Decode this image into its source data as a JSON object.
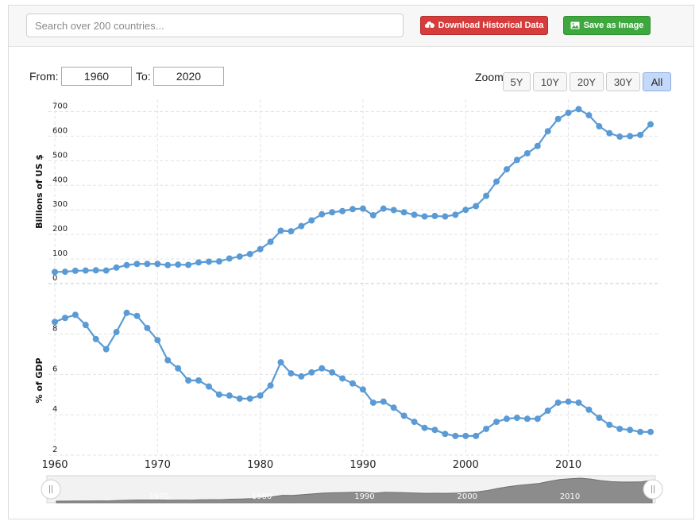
{
  "search": {
    "placeholder": "Search over 200 countries..."
  },
  "toolbar": {
    "download_label": "Download Historical Data",
    "download_icon": "cloud-download-icon",
    "save_image_label": "Save as Image",
    "save_image_icon": "image-icon",
    "download_color": "#d63c3c",
    "save_color": "#3ea83e"
  },
  "range": {
    "from_label": "From:",
    "from_value": "1960",
    "to_label": "To:",
    "to_value": "2020"
  },
  "zoom": {
    "label": "Zoom:",
    "options": [
      "5Y",
      "10Y",
      "20Y",
      "30Y",
      "All"
    ],
    "selected": "All"
  },
  "colors": {
    "series": "#5b9bd5",
    "grid": "#e3e3e3",
    "navigator_fill": "#8c8c8c"
  },
  "chart_data": [
    {
      "type": "line",
      "ylabel": "Billions of US $",
      "ylim": [
        0,
        750
      ],
      "yticks": [
        0,
        100,
        200,
        300,
        400,
        500,
        600,
        700
      ],
      "xlim": [
        1960,
        2018
      ],
      "x": [
        1960,
        1961,
        1962,
        1963,
        1964,
        1965,
        1966,
        1967,
        1968,
        1969,
        1970,
        1971,
        1972,
        1973,
        1974,
        1975,
        1976,
        1977,
        1978,
        1979,
        1980,
        1981,
        1982,
        1983,
        1984,
        1985,
        1986,
        1987,
        1988,
        1989,
        1990,
        1991,
        1992,
        1993,
        1994,
        1995,
        1996,
        1997,
        1998,
        1999,
        2000,
        2001,
        2002,
        2003,
        2004,
        2005,
        2006,
        2007,
        2008,
        2009,
        2010,
        2011,
        2012,
        2013,
        2014,
        2015,
        2016,
        2017,
        2018
      ],
      "series": [
        {
          "values": [
            47,
            48,
            52,
            53,
            54,
            53,
            65,
            75,
            80,
            80,
            80,
            75,
            77,
            76,
            86,
            89,
            90,
            102,
            110,
            120,
            140,
            170,
            215,
            213,
            234,
            257,
            282,
            290,
            295,
            303,
            305,
            278,
            305,
            299,
            290,
            280,
            273,
            275,
            273,
            280,
            300,
            315,
            357,
            415,
            465,
            503,
            530,
            560,
            620,
            670,
            695,
            710,
            685,
            640,
            612,
            598,
            600,
            605,
            648
          ]
        }
      ],
      "grid": true
    },
    {
      "type": "line",
      "ylabel": "% of GDP",
      "ylim": [
        2,
        9.4
      ],
      "yticks": [
        2,
        4,
        6,
        8
      ],
      "xlim": [
        1960,
        2018
      ],
      "x": [
        1960,
        1961,
        1962,
        1963,
        1964,
        1965,
        1966,
        1967,
        1968,
        1969,
        1970,
        1971,
        1972,
        1973,
        1974,
        1975,
        1976,
        1977,
        1978,
        1979,
        1980,
        1981,
        1982,
        1983,
        1984,
        1985,
        1986,
        1987,
        1988,
        1989,
        1990,
        1991,
        1992,
        1993,
        1994,
        1995,
        1996,
        1997,
        1998,
        1999,
        2000,
        2001,
        2002,
        2003,
        2004,
        2005,
        2006,
        2007,
        2008,
        2009,
        2010,
        2011,
        2012,
        2013,
        2014,
        2015,
        2016,
        2017,
        2018
      ],
      "xticks": [
        1960,
        1970,
        1980,
        1990,
        2000,
        2010
      ],
      "series": [
        {
          "values": [
            8.6,
            8.8,
            8.95,
            8.45,
            7.75,
            7.25,
            8.1,
            9.05,
            8.9,
            8.3,
            7.7,
            6.7,
            6.3,
            5.7,
            5.7,
            5.4,
            5.0,
            4.95,
            4.8,
            4.8,
            4.95,
            5.45,
            6.6,
            6.05,
            5.9,
            6.1,
            6.3,
            6.1,
            5.8,
            5.55,
            5.25,
            4.6,
            4.65,
            4.35,
            3.95,
            3.65,
            3.35,
            3.25,
            3.05,
            2.95,
            2.95,
            2.95,
            3.3,
            3.65,
            3.8,
            3.85,
            3.8,
            3.8,
            4.2,
            4.6,
            4.65,
            4.6,
            4.25,
            3.85,
            3.5,
            3.3,
            3.25,
            3.15,
            3.15
          ]
        }
      ],
      "grid": true
    }
  ],
  "navigator": {
    "xticks": [
      1970,
      1980,
      1990,
      2000,
      2010
    ]
  }
}
